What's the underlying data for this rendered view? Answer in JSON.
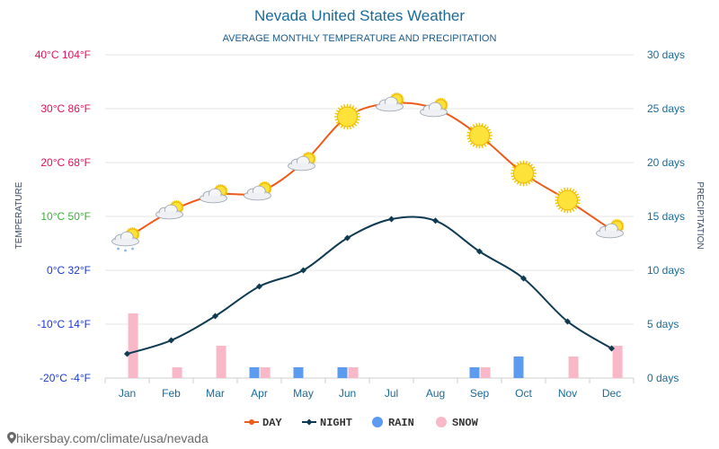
{
  "colors": {
    "day": "#ee5a1a",
    "night": "#0e3a52",
    "rain": "#5b9bf0",
    "snow": "#f8b8c8",
    "title": "#1a6a9a",
    "precip_axis": "#1a6a9a",
    "grid": "#e6e6e6",
    "month_label": "#1a6a9a"
  },
  "chart_data": {
    "type": "line",
    "title": "Nevada United States Weather",
    "subtitle": "AVERAGE MONTHLY TEMPERATURE AND PRECIPITATION",
    "ylabel": "TEMPERATURE",
    "y2label": "PRECIPITATION",
    "categories": [
      "Jan",
      "Feb",
      "Mar",
      "Apr",
      "May",
      "Jun",
      "Jul",
      "Aug",
      "Sep",
      "Oct",
      "Nov",
      "Dec"
    ],
    "ylim": [
      -20,
      40
    ],
    "y2lim": [
      0,
      30
    ],
    "yticks": [
      {
        "value": 40,
        "label": "40°C 104°F",
        "color": "#e0105a"
      },
      {
        "value": 30,
        "label": "30°C 86°F",
        "color": "#e0105a"
      },
      {
        "value": 20,
        "label": "20°C 68°F",
        "color": "#e0105a"
      },
      {
        "value": 10,
        "label": "10°C 50°F",
        "color": "#3fae3a"
      },
      {
        "value": 0,
        "label": "0°C 32°F",
        "color": "#1a3ad0"
      },
      {
        "value": -10,
        "label": "-10°C 14°F",
        "color": "#1a3ad0"
      },
      {
        "value": -20,
        "label": "-20°C -4°F",
        "color": "#1a3ad0"
      }
    ],
    "y2ticks": [
      {
        "value": 30,
        "label": "30 days"
      },
      {
        "value": 25,
        "label": "25 days"
      },
      {
        "value": 20,
        "label": "20 days"
      },
      {
        "value": 15,
        "label": "15 days"
      },
      {
        "value": 10,
        "label": "10 days"
      },
      {
        "value": 5,
        "label": "5 days"
      },
      {
        "value": 0,
        "label": "0 days"
      }
    ],
    "series": [
      {
        "name": "DAY",
        "kind": "line",
        "values": [
          6,
          11,
          14,
          14.5,
          20,
          28.5,
          31,
          30,
          25,
          18,
          13,
          7.5
        ]
      },
      {
        "name": "NIGHT",
        "kind": "line",
        "values": [
          -15.5,
          -13,
          -8.5,
          -3,
          0,
          6,
          9.5,
          9.2,
          3.5,
          -1.5,
          -9.5,
          -14.5
        ]
      },
      {
        "name": "RAIN",
        "kind": "bar",
        "axis": "precipitation",
        "values": [
          0,
          0,
          0,
          1,
          1,
          1,
          0,
          0,
          1,
          2,
          0,
          0
        ]
      },
      {
        "name": "SNOW",
        "kind": "bar",
        "axis": "precipitation",
        "values": [
          6,
          1,
          3,
          1,
          0,
          1,
          0,
          0,
          1,
          0,
          2,
          3
        ]
      }
    ],
    "weather_icons": [
      "cloud-snow-sun-icon",
      "cloud-sun-icon",
      "cloud-sun-icon",
      "cloud-sun-icon",
      "cloud-sun-icon",
      "sun-icon",
      "cloud-sun-icon",
      "cloud-sun-icon",
      "sun-icon",
      "sun-icon",
      "sun-icon",
      "cloud-sun-icon"
    ],
    "legend": [
      {
        "name": "DAY",
        "marker": "line-dot"
      },
      {
        "name": "NIGHT",
        "marker": "line-diamond"
      },
      {
        "name": "RAIN",
        "marker": "dot"
      },
      {
        "name": "SNOW",
        "marker": "dot"
      }
    ],
    "legend_position": "bottom",
    "grid": true
  },
  "footer": {
    "icon": "location-pin-icon",
    "text": "hikersbay.com/climate/usa/nevada"
  }
}
